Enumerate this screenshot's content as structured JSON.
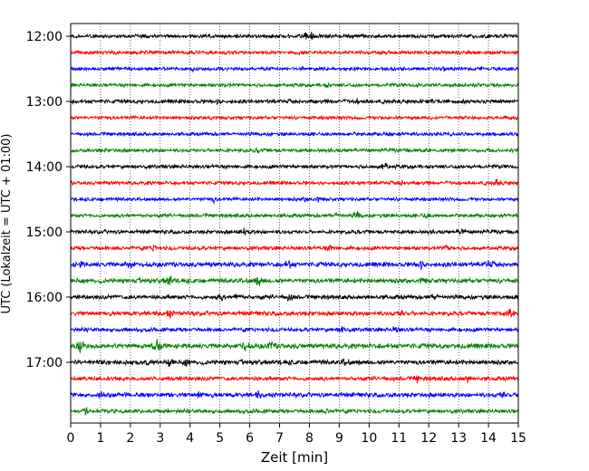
{
  "chart_data": {
    "type": "line",
    "subtype": "helicorder (seismogram drum plot)",
    "title": "",
    "xlabel": "Zeit  [min]",
    "ylabel": "UTC (Lokalzeit = UTC + 01:00)",
    "xlim": [
      0,
      15
    ],
    "x_ticks": [
      0,
      1,
      2,
      3,
      4,
      5,
      6,
      7,
      8,
      9,
      10,
      11,
      12,
      13,
      14,
      15
    ],
    "y_ticks": [
      "12:00",
      "13:00",
      "14:00",
      "15:00",
      "16:00",
      "17:00"
    ],
    "trace_interval_minutes": 15,
    "line_count": 24,
    "start_time": "12:00",
    "grid": "vertical dotted lines at each minute",
    "line_color_cycle": [
      "#000000",
      "#ff0000",
      "#0000ff",
      "#008000"
    ],
    "traces": [
      {
        "start": "12:00",
        "color": "#000000",
        "amplitude": 2.4,
        "events": [
          {
            "t": 7.9,
            "a": 4.5
          },
          {
            "t": 8.1,
            "a": 4
          }
        ]
      },
      {
        "start": "12:15",
        "color": "#ff0000",
        "amplitude": 2.2,
        "events": [
          {
            "t": 10.4,
            "a": 2.5
          }
        ]
      },
      {
        "start": "12:30",
        "color": "#0000ff",
        "amplitude": 2.2,
        "events": [
          {
            "t": 4.1,
            "a": 2
          },
          {
            "t": 12.5,
            "a": 2
          }
        ]
      },
      {
        "start": "12:45",
        "color": "#008000",
        "amplitude": 2.2,
        "events": [
          {
            "t": 8.6,
            "a": 2
          }
        ]
      },
      {
        "start": "13:00",
        "color": "#000000",
        "amplitude": 2.5,
        "events": [
          {
            "t": 4.9,
            "a": 2
          },
          {
            "t": 9.6,
            "a": 2
          }
        ]
      },
      {
        "start": "13:15",
        "color": "#ff0000",
        "amplitude": 2.2,
        "events": [
          {
            "t": 4.7,
            "a": 2.5
          }
        ]
      },
      {
        "start": "13:30",
        "color": "#0000ff",
        "amplitude": 2.2,
        "events": [
          {
            "t": 10.6,
            "a": 2
          }
        ]
      },
      {
        "start": "13:45",
        "color": "#008000",
        "amplitude": 2.3,
        "events": [
          {
            "t": 6.3,
            "a": 2.5
          }
        ]
      },
      {
        "start": "14:00",
        "color": "#000000",
        "amplitude": 2.4,
        "events": [
          {
            "t": 0.4,
            "a": 3
          },
          {
            "t": 10.5,
            "a": 6
          }
        ]
      },
      {
        "start": "14:15",
        "color": "#ff0000",
        "amplitude": 2.3,
        "events": [
          {
            "t": 11.1,
            "a": 2.5
          },
          {
            "t": 14.3,
            "a": 4
          }
        ]
      },
      {
        "start": "14:30",
        "color": "#0000ff",
        "amplitude": 2.2,
        "events": [
          {
            "t": 4.8,
            "a": 3
          },
          {
            "t": 7.9,
            "a": 4.5
          },
          {
            "t": 8.3,
            "a": 3.5
          }
        ]
      },
      {
        "start": "14:45",
        "color": "#008000",
        "amplitude": 2.3,
        "events": [
          {
            "t": 8.9,
            "a": 3
          },
          {
            "t": 9.6,
            "a": 4.5
          },
          {
            "t": 11.9,
            "a": 3
          }
        ]
      },
      {
        "start": "15:00",
        "color": "#000000",
        "amplitude": 2.4,
        "events": [
          {
            "t": 5.8,
            "a": 4
          },
          {
            "t": 13.1,
            "a": 4.5
          }
        ]
      },
      {
        "start": "15:15",
        "color": "#ff0000",
        "amplitude": 2.5,
        "events": [
          {
            "t": 2.8,
            "a": 5
          },
          {
            "t": 8.7,
            "a": 4
          },
          {
            "t": 12.6,
            "a": 4
          }
        ]
      },
      {
        "start": "15:30",
        "color": "#0000ff",
        "amplitude": 3,
        "events": [
          {
            "t": 0.3,
            "a": 4
          },
          {
            "t": 2.0,
            "a": 6
          },
          {
            "t": 7.3,
            "a": 5
          },
          {
            "t": 11.7,
            "a": 8
          },
          {
            "t": 14.0,
            "a": 4
          }
        ]
      },
      {
        "start": "15:45",
        "color": "#008000",
        "amplitude": 3,
        "events": [
          {
            "t": 3.3,
            "a": 7
          },
          {
            "t": 6.3,
            "a": 7
          },
          {
            "t": 11.8,
            "a": 4
          }
        ]
      },
      {
        "start": "16:00",
        "color": "#000000",
        "amplitude": 2.7,
        "events": [
          {
            "t": 5.0,
            "a": 4
          },
          {
            "t": 5.6,
            "a": 7
          },
          {
            "t": 7.3,
            "a": 5
          },
          {
            "t": 12.2,
            "a": 4
          }
        ]
      },
      {
        "start": "16:15",
        "color": "#ff0000",
        "amplitude": 2.8,
        "events": [
          {
            "t": 3.3,
            "a": 5
          },
          {
            "t": 11.1,
            "a": 4
          },
          {
            "t": 14.7,
            "a": 6
          }
        ]
      },
      {
        "start": "16:30",
        "color": "#0000ff",
        "amplitude": 2.5,
        "events": [
          {
            "t": 9.1,
            "a": 6
          },
          {
            "t": 10.9,
            "a": 4
          }
        ]
      },
      {
        "start": "16:45",
        "color": "#008000",
        "amplitude": 3.2,
        "events": [
          {
            "t": 0.3,
            "a": 9
          },
          {
            "t": 2.9,
            "a": 8
          },
          {
            "t": 5.8,
            "a": 6
          },
          {
            "t": 6.7,
            "a": 5
          }
        ]
      },
      {
        "start": "17:00",
        "color": "#000000",
        "amplitude": 3,
        "events": [
          {
            "t": 3.3,
            "a": 5
          },
          {
            "t": 3.9,
            "a": 4
          },
          {
            "t": 9.2,
            "a": 4
          }
        ]
      },
      {
        "start": "17:15",
        "color": "#ff0000",
        "amplitude": 2.6,
        "events": [
          {
            "t": 11.6,
            "a": 3
          },
          {
            "t": 13.3,
            "a": 3
          }
        ]
      },
      {
        "start": "17:30",
        "color": "#0000ff",
        "amplitude": 2.8,
        "events": [
          {
            "t": 1.0,
            "a": 5
          },
          {
            "t": 4.3,
            "a": 4
          },
          {
            "t": 6.3,
            "a": 4
          },
          {
            "t": 14.5,
            "a": 5
          }
        ]
      },
      {
        "start": "17:45",
        "color": "#008000",
        "amplitude": 2.5,
        "events": [
          {
            "t": 0.5,
            "a": 4
          },
          {
            "t": 8.6,
            "a": 3
          }
        ]
      }
    ]
  }
}
